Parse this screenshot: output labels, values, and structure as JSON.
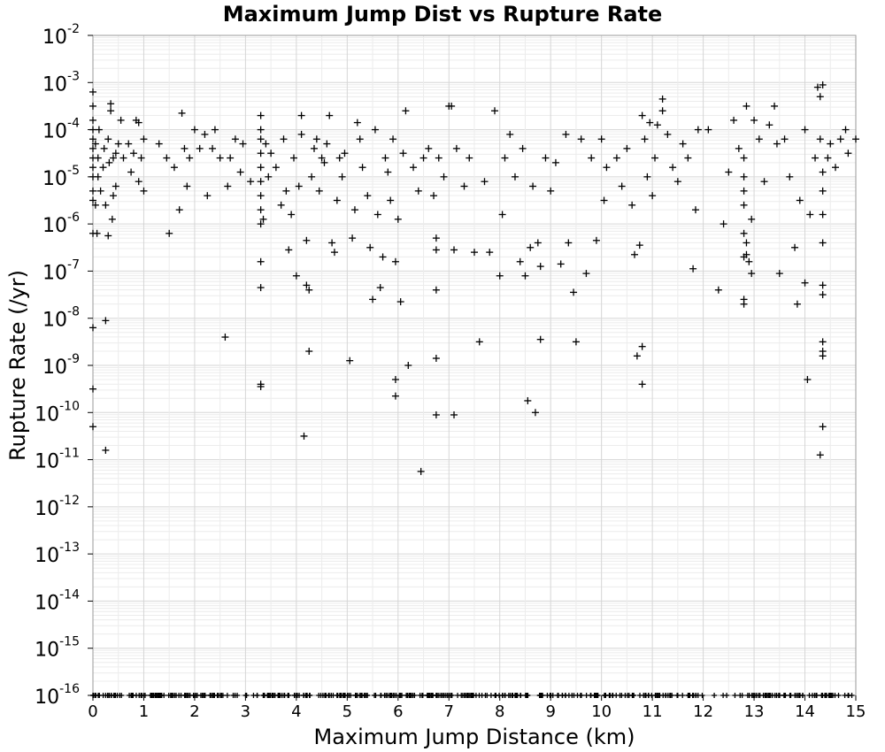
{
  "chart_data": {
    "type": "scatter",
    "title": "Maximum Jump Dist vs Rupture Rate",
    "xlabel": "Maximum Jump Distance (km)",
    "ylabel": "Rupture Rate (/yr)",
    "xlim": [
      0,
      15
    ],
    "ylim_log10": [
      -16,
      -2
    ],
    "y_scale": "log",
    "grid": true,
    "marker": "plus",
    "marker_color": "#000000",
    "x_ticks": [
      "0",
      "1",
      "2",
      "3",
      "4",
      "5",
      "6",
      "7",
      "8",
      "9",
      "10",
      "11",
      "12",
      "13",
      "14",
      "15"
    ],
    "y_ticks": [
      {
        "base": "10",
        "exp": "-2"
      },
      {
        "base": "10",
        "exp": "-3"
      },
      {
        "base": "10",
        "exp": "-4"
      },
      {
        "base": "10",
        "exp": "-5"
      },
      {
        "base": "10",
        "exp": "-6"
      },
      {
        "base": "10",
        "exp": "-7"
      },
      {
        "base": "10",
        "exp": "-8"
      },
      {
        "base": "10",
        "exp": "-9"
      },
      {
        "base": "10",
        "exp": "-10"
      },
      {
        "base": "10",
        "exp": "-11"
      },
      {
        "base": "10",
        "exp": "-12"
      },
      {
        "base": "10",
        "exp": "-13"
      },
      {
        "base": "10",
        "exp": "-14"
      },
      {
        "base": "10",
        "exp": "-15"
      },
      {
        "base": "10",
        "exp": "-16"
      }
    ],
    "points": [
      [
        0.0,
        -3.2
      ],
      [
        0.0,
        -3.5
      ],
      [
        0.0,
        -3.8
      ],
      [
        0.0,
        -4.0
      ],
      [
        0.0,
        -4.2
      ],
      [
        0.0,
        -4.4
      ],
      [
        0.0,
        -4.6
      ],
      [
        0.0,
        -4.8
      ],
      [
        0.0,
        -5.0
      ],
      [
        0.0,
        -5.3
      ],
      [
        0.0,
        -5.5
      ],
      [
        0.0,
        -6.2
      ],
      [
        0.0,
        -8.2
      ],
      [
        0.0,
        -9.5
      ],
      [
        0.0,
        -10.3
      ],
      [
        0.05,
        -4.3
      ],
      [
        0.05,
        -5.6
      ],
      [
        0.08,
        -6.2
      ],
      [
        0.1,
        -4.6
      ],
      [
        0.1,
        -5.0
      ],
      [
        0.12,
        -4.0
      ],
      [
        0.15,
        -5.3
      ],
      [
        0.2,
        -4.8
      ],
      [
        0.22,
        -4.4
      ],
      [
        0.25,
        -5.6
      ],
      [
        0.25,
        -8.05
      ],
      [
        0.25,
        -10.8
      ],
      [
        0.3,
        -4.2
      ],
      [
        0.3,
        -6.25
      ],
      [
        0.32,
        -4.7
      ],
      [
        0.35,
        -3.6
      ],
      [
        0.35,
        -3.45
      ],
      [
        0.38,
        -5.9
      ],
      [
        0.4,
        -4.6
      ],
      [
        0.4,
        -5.4
      ],
      [
        0.45,
        -4.5
      ],
      [
        0.45,
        -5.2
      ],
      [
        0.5,
        -4.3
      ],
      [
        0.55,
        -3.8
      ],
      [
        0.6,
        -4.6
      ],
      [
        0.7,
        -4.3
      ],
      [
        0.75,
        -4.9
      ],
      [
        0.8,
        -4.5
      ],
      [
        0.85,
        -3.8
      ],
      [
        0.9,
        -5.1
      ],
      [
        0.9,
        -3.85
      ],
      [
        0.95,
        -4.6
      ],
      [
        1.0,
        -5.3
      ],
      [
        1.0,
        -4.2
      ],
      [
        1.3,
        -4.3
      ],
      [
        1.45,
        -4.6
      ],
      [
        1.5,
        -6.2
      ],
      [
        1.6,
        -4.8
      ],
      [
        1.7,
        -5.7
      ],
      [
        1.75,
        -3.65
      ],
      [
        1.8,
        -4.4
      ],
      [
        1.85,
        -5.2
      ],
      [
        1.9,
        -4.6
      ],
      [
        2.0,
        -4.0
      ],
      [
        2.1,
        -4.4
      ],
      [
        2.2,
        -4.1
      ],
      [
        2.25,
        -5.4
      ],
      [
        2.35,
        -4.4
      ],
      [
        2.4,
        -4.0
      ],
      [
        2.5,
        -4.6
      ],
      [
        2.6,
        -8.4
      ],
      [
        2.65,
        -5.2
      ],
      [
        2.7,
        -4.6
      ],
      [
        2.8,
        -4.2
      ],
      [
        2.9,
        -4.9
      ],
      [
        2.95,
        -4.3
      ],
      [
        3.1,
        -5.1
      ],
      [
        3.3,
        -3.7
      ],
      [
        3.3,
        -4.0
      ],
      [
        3.3,
        -4.2
      ],
      [
        3.3,
        -4.5
      ],
      [
        3.3,
        -4.8
      ],
      [
        3.3,
        -5.1
      ],
      [
        3.3,
        -5.4
      ],
      [
        3.3,
        -5.7
      ],
      [
        3.3,
        -6.0
      ],
      [
        3.3,
        -6.8
      ],
      [
        3.3,
        -7.35
      ],
      [
        3.3,
        -9.4
      ],
      [
        3.3,
        -9.45
      ],
      [
        3.35,
        -5.9
      ],
      [
        3.4,
        -4.3
      ],
      [
        3.45,
        -5.0
      ],
      [
        3.5,
        -4.5
      ],
      [
        3.6,
        -4.8
      ],
      [
        3.7,
        -5.6
      ],
      [
        3.75,
        -4.2
      ],
      [
        3.8,
        -5.3
      ],
      [
        3.85,
        -6.55
      ],
      [
        3.9,
        -5.8
      ],
      [
        3.95,
        -4.6
      ],
      [
        4.0,
        -7.1
      ],
      [
        4.05,
        -5.2
      ],
      [
        4.1,
        -3.7
      ],
      [
        4.1,
        -4.1
      ],
      [
        4.15,
        -10.5
      ],
      [
        4.2,
        -6.35
      ],
      [
        4.2,
        -7.3
      ],
      [
        4.25,
        -7.4
      ],
      [
        4.25,
        -8.7
      ],
      [
        4.3,
        -5.0
      ],
      [
        4.35,
        -4.4
      ],
      [
        4.4,
        -4.2
      ],
      [
        4.45,
        -5.3
      ],
      [
        4.5,
        -4.6
      ],
      [
        4.55,
        -4.7
      ],
      [
        4.6,
        -4.3
      ],
      [
        4.65,
        -3.7
      ],
      [
        4.7,
        -6.4
      ],
      [
        4.75,
        -6.6
      ],
      [
        4.8,
        -5.5
      ],
      [
        4.85,
        -4.6
      ],
      [
        4.9,
        -5.0
      ],
      [
        4.95,
        -4.5
      ],
      [
        5.05,
        -8.9
      ],
      [
        5.1,
        -6.3
      ],
      [
        5.15,
        -5.7
      ],
      [
        5.2,
        -3.85
      ],
      [
        5.25,
        -4.2
      ],
      [
        5.3,
        -4.8
      ],
      [
        5.4,
        -5.4
      ],
      [
        5.45,
        -6.5
      ],
      [
        5.5,
        -7.6
      ],
      [
        5.55,
        -4.0
      ],
      [
        5.6,
        -5.8
      ],
      [
        5.65,
        -7.35
      ],
      [
        5.7,
        -6.7
      ],
      [
        5.75,
        -4.6
      ],
      [
        5.8,
        -4.9
      ],
      [
        5.85,
        -5.5
      ],
      [
        5.9,
        -4.2
      ],
      [
        5.95,
        -6.8
      ],
      [
        5.95,
        -9.65
      ],
      [
        5.95,
        -9.3
      ],
      [
        6.0,
        -5.9
      ],
      [
        6.05,
        -7.65
      ],
      [
        6.1,
        -4.5
      ],
      [
        6.15,
        -3.6
      ],
      [
        6.2,
        -9.0
      ],
      [
        6.3,
        -4.8
      ],
      [
        6.4,
        -5.3
      ],
      [
        6.45,
        -11.25
      ],
      [
        6.5,
        -4.6
      ],
      [
        6.6,
        -4.4
      ],
      [
        6.7,
        -5.4
      ],
      [
        6.75,
        -6.3
      ],
      [
        6.75,
        -6.55
      ],
      [
        6.75,
        -7.4
      ],
      [
        6.75,
        -8.85
      ],
      [
        6.75,
        -10.05
      ],
      [
        6.8,
        -4.6
      ],
      [
        6.9,
        -5.0
      ],
      [
        7.0,
        -3.5
      ],
      [
        7.05,
        -3.5
      ],
      [
        7.1,
        -6.55
      ],
      [
        7.1,
        -10.05
      ],
      [
        7.15,
        -4.4
      ],
      [
        7.3,
        -5.2
      ],
      [
        7.4,
        -4.6
      ],
      [
        7.5,
        -6.6
      ],
      [
        7.6,
        -8.5
      ],
      [
        7.7,
        -5.1
      ],
      [
        7.8,
        -6.6
      ],
      [
        7.9,
        -3.6
      ],
      [
        8.0,
        -7.1
      ],
      [
        8.05,
        -5.8
      ],
      [
        8.1,
        -4.6
      ],
      [
        8.2,
        -4.1
      ],
      [
        8.3,
        -5.0
      ],
      [
        8.4,
        -6.8
      ],
      [
        8.45,
        -4.4
      ],
      [
        8.5,
        -7.1
      ],
      [
        8.55,
        -9.75
      ],
      [
        8.6,
        -6.5
      ],
      [
        8.65,
        -5.2
      ],
      [
        8.7,
        -10.0
      ],
      [
        8.75,
        -6.4
      ],
      [
        8.8,
        -8.45
      ],
      [
        8.8,
        -6.9
      ],
      [
        8.9,
        -4.6
      ],
      [
        9.0,
        -5.3
      ],
      [
        9.1,
        -4.7
      ],
      [
        9.2,
        -6.85
      ],
      [
        9.3,
        -4.1
      ],
      [
        9.35,
        -6.4
      ],
      [
        9.45,
        -7.45
      ],
      [
        9.5,
        -8.5
      ],
      [
        9.6,
        -4.2
      ],
      [
        9.7,
        -7.05
      ],
      [
        9.8,
        -4.6
      ],
      [
        9.9,
        -6.35
      ],
      [
        10.0,
        -4.2
      ],
      [
        10.05,
        -5.5
      ],
      [
        10.1,
        -4.8
      ],
      [
        10.3,
        -4.6
      ],
      [
        10.4,
        -5.2
      ],
      [
        10.5,
        -4.4
      ],
      [
        10.6,
        -5.6
      ],
      [
        10.65,
        -6.65
      ],
      [
        10.7,
        -8.8
      ],
      [
        10.75,
        -6.45
      ],
      [
        10.8,
        -8.6
      ],
      [
        10.8,
        -9.4
      ],
      [
        10.8,
        -3.7
      ],
      [
        10.85,
        -4.2
      ],
      [
        10.9,
        -5.0
      ],
      [
        10.95,
        -3.85
      ],
      [
        11.0,
        -5.4
      ],
      [
        11.05,
        -4.6
      ],
      [
        11.1,
        -3.9
      ],
      [
        11.2,
        -3.35
      ],
      [
        11.2,
        -3.6
      ],
      [
        11.3,
        -4.1
      ],
      [
        11.4,
        -4.8
      ],
      [
        11.5,
        -5.1
      ],
      [
        11.6,
        -4.3
      ],
      [
        11.7,
        -4.6
      ],
      [
        11.8,
        -6.95
      ],
      [
        11.85,
        -5.7
      ],
      [
        11.9,
        -4.0
      ],
      [
        12.1,
        -4.0
      ],
      [
        12.3,
        -7.4
      ],
      [
        12.4,
        -6.0
      ],
      [
        12.5,
        -4.9
      ],
      [
        12.6,
        -3.8
      ],
      [
        12.7,
        -4.4
      ],
      [
        12.8,
        -4.6
      ],
      [
        12.8,
        -5.0
      ],
      [
        12.8,
        -5.3
      ],
      [
        12.8,
        -5.6
      ],
      [
        12.8,
        -6.2
      ],
      [
        12.8,
        -6.7
      ],
      [
        12.8,
        -7.7
      ],
      [
        12.8,
        -7.6
      ],
      [
        12.85,
        -3.5
      ],
      [
        12.85,
        -6.4
      ],
      [
        12.85,
        -6.65
      ],
      [
        12.9,
        -6.8
      ],
      [
        12.95,
        -7.05
      ],
      [
        12.95,
        -5.9
      ],
      [
        13.0,
        -3.8
      ],
      [
        13.1,
        -4.2
      ],
      [
        13.2,
        -5.1
      ],
      [
        13.3,
        -3.9
      ],
      [
        13.4,
        -3.5
      ],
      [
        13.45,
        -4.3
      ],
      [
        13.5,
        -7.05
      ],
      [
        13.6,
        -4.2
      ],
      [
        13.7,
        -5.0
      ],
      [
        13.8,
        -6.5
      ],
      [
        13.85,
        -7.7
      ],
      [
        13.9,
        -5.5
      ],
      [
        14.0,
        -4.0
      ],
      [
        14.0,
        -7.25
      ],
      [
        14.05,
        -9.3
      ],
      [
        14.1,
        -5.8
      ],
      [
        14.2,
        -4.6
      ],
      [
        14.25,
        -3.1
      ],
      [
        14.3,
        -3.3
      ],
      [
        14.35,
        -3.05
      ],
      [
        14.3,
        -4.2
      ],
      [
        14.35,
        -4.9
      ],
      [
        14.35,
        -5.3
      ],
      [
        14.35,
        -5.8
      ],
      [
        14.35,
        -6.4
      ],
      [
        14.35,
        -7.3
      ],
      [
        14.35,
        -7.5
      ],
      [
        14.35,
        -8.5
      ],
      [
        14.35,
        -8.7
      ],
      [
        14.35,
        -8.8
      ],
      [
        14.35,
        -10.3
      ],
      [
        14.3,
        -10.9
      ],
      [
        14.45,
        -4.6
      ],
      [
        14.5,
        -4.3
      ],
      [
        14.6,
        -4.8
      ],
      [
        14.7,
        -4.2
      ],
      [
        14.8,
        -4.0
      ],
      [
        14.85,
        -4.5
      ],
      [
        15.0,
        -4.2
      ]
    ],
    "floor_value_log10": -16,
    "floor_note_count": 420
  }
}
